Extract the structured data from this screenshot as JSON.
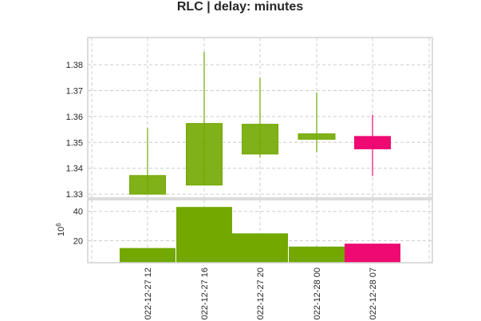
{
  "chart_data": {
    "type": "candlestick",
    "title": "RLC | delay: minutes",
    "categories": [
      "022-12-27 12",
      "022-12-27 16",
      "022-12-27 20",
      "022-12-28 00",
      "022-12-28 07"
    ],
    "ohlc": [
      {
        "open": 1.33,
        "high": 1.3555,
        "low": 1.33,
        "close": 1.3372
      },
      {
        "open": 1.3335,
        "high": 1.385,
        "low": 1.3335,
        "close": 1.3573
      },
      {
        "open": 1.3455,
        "high": 1.375,
        "low": 1.3442,
        "close": 1.357
      },
      {
        "open": 1.3512,
        "high": 1.3693,
        "low": 1.3462,
        "close": 1.3533
      },
      {
        "open": 1.3523,
        "high": 1.3607,
        "low": 1.337,
        "close": 1.3475
      }
    ],
    "volume": [
      15.0,
      43.0,
      25.0,
      16.0,
      18.0
    ],
    "volume_exponent_label": "10",
    "volume_exponent_power": "6",
    "price_ylim": [
      1.3285,
      1.3905
    ],
    "price_yticks": [
      "1.33",
      "1.34",
      "1.35",
      "1.36",
      "1.37",
      "1.38"
    ],
    "volume_ylim": [
      5.0,
      48.0
    ],
    "volume_yticks": [
      "20",
      "40"
    ],
    "grid": true,
    "colors": {
      "up": "#72a800",
      "down": "#ee0a72",
      "grid": "#cccccc",
      "frame": "#d0d0d0"
    }
  }
}
